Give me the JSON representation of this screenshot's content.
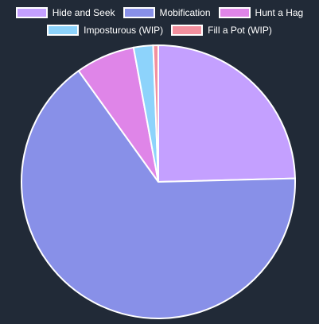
{
  "chart_data": {
    "type": "pie",
    "title": "",
    "legend_position": "top",
    "categories": [
      "Hide and Seek",
      "Mobification",
      "Hunt a Hag",
      "Imposturous (WIP)",
      "Fill a Pot (WIP)"
    ],
    "values": [
      24.6,
      65.5,
      7.0,
      2.3,
      0.6
    ],
    "colors": [
      "#c4a0ff",
      "#8890e8",
      "#df85e8",
      "#8dd3fb",
      "#f3909e"
    ],
    "legend_rows": [
      [
        0,
        1,
        2
      ],
      [
        3,
        4
      ]
    ]
  }
}
